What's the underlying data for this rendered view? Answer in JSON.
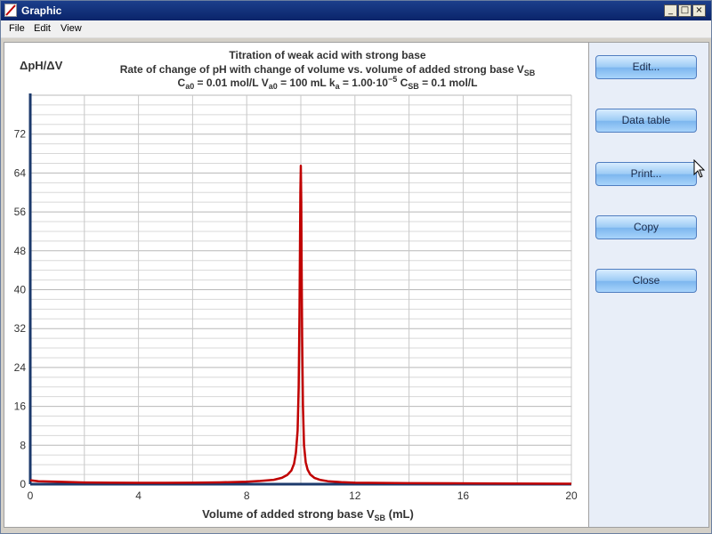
{
  "window": {
    "title": "Graphic",
    "controls": {
      "minimize": "_",
      "maximize": "□",
      "close": "×"
    }
  },
  "menu": {
    "items": [
      "File",
      "Edit",
      "View"
    ]
  },
  "buttons": [
    "Edit...",
    "Data table",
    "Print...",
    "Copy",
    "Close"
  ],
  "chart_data": {
    "type": "line",
    "title": "Titration of weak acid with strong base",
    "subtitle": "Rate of change of pH with change of volume  vs.  volume of added strong base V",
    "subtitle_sub": "SB",
    "params": {
      "c_main": "C",
      "c_sub": "a0",
      "c_val": " = 0.01 mol/L  ",
      "v_main": "V",
      "v_sub": "a0",
      "v_val": " = 100 mL  ",
      "k_main": "k",
      "k_sub": "a",
      "k_val": " = 1.00·10",
      "k_exp": "−5",
      "cb_main": "  C",
      "cb_sub": "SB",
      "cb_val": " = 0.1 mol/L"
    },
    "ylabel": "ΔpH/ΔV",
    "xlabel_main": "Volume of added strong base V",
    "xlabel_sub": "SB",
    "xlabel_unit": " (mL)",
    "xlim": [
      0,
      20
    ],
    "ylim": [
      0,
      80
    ],
    "x_ticks": [
      "0",
      "4",
      "8",
      "12",
      "16",
      "20"
    ],
    "y_ticks": [
      "0",
      "8",
      "16",
      "24",
      "32",
      "40",
      "48",
      "56",
      "64",
      "72"
    ],
    "grid": true,
    "series": [
      {
        "color": "#c00000",
        "x": [
          0,
          0.3,
          1,
          2,
          3,
          4,
          5,
          6,
          7,
          8,
          8.5,
          9,
          9.3,
          9.5,
          9.65,
          9.75,
          9.82,
          9.88,
          9.92,
          9.95,
          9.97,
          9.985,
          10.0,
          10.015,
          10.03,
          10.05,
          10.08,
          10.12,
          10.18,
          10.25,
          10.35,
          10.5,
          10.7,
          11,
          11.5,
          12,
          14,
          17,
          20
        ],
        "y": [
          0.8,
          0.6,
          0.5,
          0.35,
          0.3,
          0.28,
          0.27,
          0.3,
          0.36,
          0.5,
          0.65,
          0.9,
          1.3,
          1.9,
          2.8,
          4.2,
          6.5,
          11,
          20,
          35,
          50,
          60,
          65.5,
          58,
          45,
          30,
          16,
          8,
          4.5,
          3,
          2,
          1.3,
          0.9,
          0.6,
          0.4,
          0.3,
          0.2,
          0.15,
          0.1
        ]
      }
    ]
  }
}
